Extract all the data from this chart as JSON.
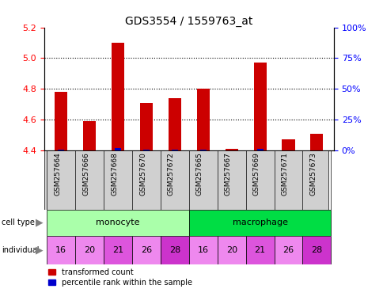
{
  "title": "GDS3554 / 1559763_at",
  "samples": [
    "GSM257664",
    "GSM257666",
    "GSM257668",
    "GSM257670",
    "GSM257672",
    "GSM257665",
    "GSM257667",
    "GSM257669",
    "GSM257671",
    "GSM257673"
  ],
  "red_values": [
    4.78,
    4.59,
    5.1,
    4.71,
    4.74,
    4.8,
    4.41,
    4.97,
    4.47,
    4.51
  ],
  "blue_percentile": [
    5,
    3,
    15,
    5,
    5,
    5,
    1,
    12,
    1,
    2
  ],
  "base": 4.4,
  "ylim_left": [
    4.4,
    5.2
  ],
  "ylim_right": [
    0,
    100
  ],
  "yticks_left": [
    4.4,
    4.6,
    4.8,
    5.0,
    5.2
  ],
  "yticks_right": [
    0,
    25,
    50,
    75,
    100
  ],
  "ytick_labels_right": [
    "0%",
    "25%",
    "50%",
    "75%",
    "100%"
  ],
  "cell_types": [
    {
      "label": "monocyte",
      "start": 0,
      "end": 5,
      "color": "#aaffaa"
    },
    {
      "label": "macrophage",
      "start": 5,
      "end": 10,
      "color": "#00dd44"
    }
  ],
  "individuals": [
    "16",
    "20",
    "21",
    "26",
    "28",
    "16",
    "20",
    "21",
    "26",
    "28"
  ],
  "ind_colors": [
    "#ee88ee",
    "#ee88ee",
    "#dd55dd",
    "#ee88ee",
    "#cc33cc",
    "#ee88ee",
    "#ee88ee",
    "#dd55dd",
    "#ee88ee",
    "#cc33cc"
  ],
  "legend_red": "transformed count",
  "legend_blue": "percentile rank within the sample",
  "bar_width": 0.45,
  "red_color": "#cc0000",
  "blue_color": "#0000cc",
  "sample_bg": "#d0d0d0",
  "dotted_lines": [
    4.6,
    4.8,
    5.0
  ]
}
